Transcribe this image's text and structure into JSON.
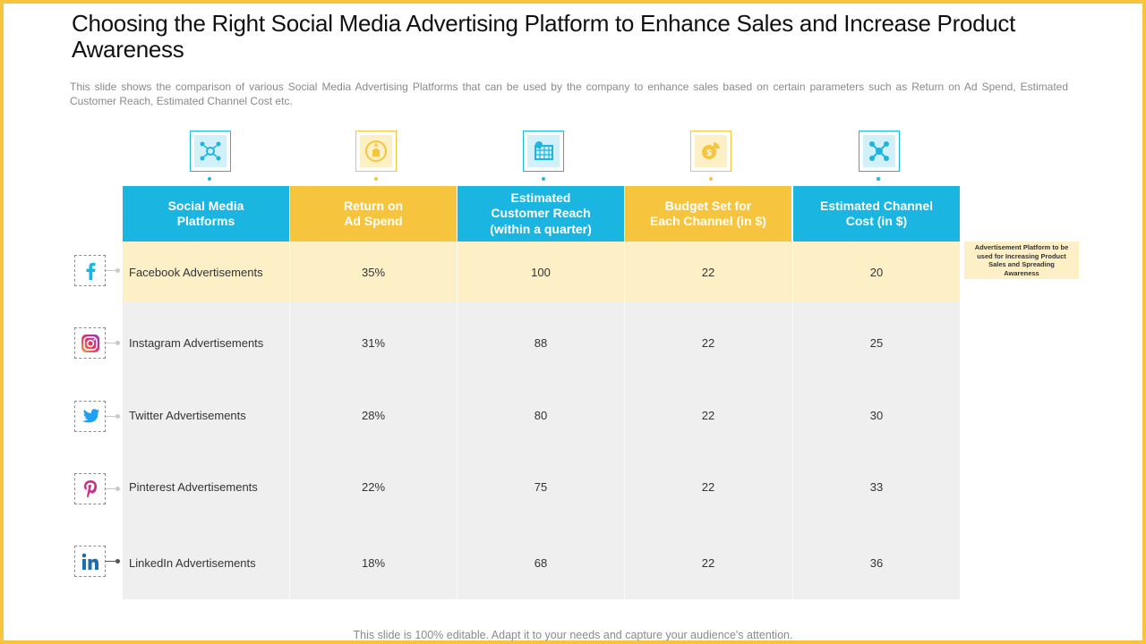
{
  "title": "Choosing the Right Social Media Advertising Platform to Enhance Sales and Increase Product Awareness",
  "subtitle": "This slide shows the comparison of various  Social Media Advertising  Platforms that can be used by the company to enhance sales based on certain parameters such as Return  on Ad Spend, Estimated Customer Reach, Estimated Channel  Cost etc.",
  "headers": [
    {
      "icon": "network-icon",
      "line1": "Social Media",
      "line2": "Platforms",
      "line3": ""
    },
    {
      "icon": "money-bag-icon",
      "line1": "Return on",
      "line2": "Ad  Spend",
      "line3": ""
    },
    {
      "icon": "calendar-target-icon",
      "line1": "Estimated",
      "line2": "Customer Reach",
      "line3": "(within a quarter)"
    },
    {
      "icon": "coin-chart-icon",
      "line1": "Budget Set for",
      "line2": "Each Channel (in $)",
      "line3": ""
    },
    {
      "icon": "connection-hub-icon",
      "line1": "Estimated Channel",
      "line2": "Cost (in $)",
      "line3": ""
    }
  ],
  "rows": [
    {
      "icon": "facebook-icon",
      "platform": "Facebook  Advertisements",
      "roas": "35%",
      "reach": "100",
      "budget": "22",
      "cost": "20"
    },
    {
      "icon": "instagram-icon",
      "platform": "Instagram  Advertisements",
      "roas": "31%",
      "reach": "88",
      "budget": "22",
      "cost": "25"
    },
    {
      "icon": "twitter-icon",
      "platform": "Twitter  Advertisements",
      "roas": "28%",
      "reach": "80",
      "budget": "22",
      "cost": "30"
    },
    {
      "icon": "pinterest-icon",
      "platform": "Pinterest  Advertisements",
      "roas": "22%",
      "reach": "75",
      "budget": "22",
      "cost": "33"
    },
    {
      "icon": "linkedin-icon",
      "platform": "LinkedIn  Advertisements",
      "roas": "18%",
      "reach": "68",
      "budget": "22",
      "cost": "36"
    }
  ],
  "callout": "Advertisement Platform to be used for Increasing Product Sales and Spreading Awareness",
  "footer": "This  slide  is  100%  editable.  Adapt  it  to  your  needs  and  capture  your  audience's  attention.",
  "colors": {
    "accent_blue": "#1bb5e1",
    "accent_yellow": "#f7c53d",
    "highlight_row": "#fdefc6",
    "table_body": "#efefef",
    "frame": "#f7c53d"
  }
}
